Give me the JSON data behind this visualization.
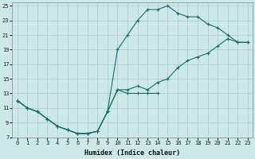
{
  "xlabel": "Humidex (Indice chaleur)",
  "bg_color": "#cce8e8",
  "grid_color": "#aacccc",
  "line_color": "#1a6b6b",
  "xlim": [
    -0.5,
    23.5
  ],
  "ylim": [
    7,
    25.5
  ],
  "xticks": [
    0,
    1,
    2,
    3,
    4,
    5,
    6,
    7,
    8,
    9,
    10,
    11,
    12,
    13,
    14,
    15,
    16,
    17,
    18,
    19,
    20,
    21,
    22,
    23
  ],
  "yticks": [
    7,
    9,
    11,
    13,
    15,
    17,
    19,
    21,
    23,
    25
  ],
  "curve1_x": [
    0,
    1,
    2,
    3,
    4,
    5,
    6,
    7,
    8,
    9,
    10,
    11,
    12,
    13,
    14,
    15,
    16,
    17,
    18,
    19,
    20,
    21,
    22,
    23
  ],
  "curve1_y": [
    12,
    11,
    10.5,
    9.5,
    8.5,
    8.0,
    7.5,
    7.5,
    7.8,
    10.5,
    19.0,
    21.0,
    23.0,
    24.5,
    24.5,
    25.0,
    24.0,
    23.5,
    23.5,
    22.5,
    22.0,
    21.0,
    20.0,
    20.0
  ],
  "curve2_x": [
    0,
    1,
    2,
    3,
    4,
    5,
    6,
    7,
    8,
    9,
    10,
    11,
    12,
    13,
    14,
    15,
    16,
    17,
    18,
    19,
    20,
    21,
    22,
    23
  ],
  "curve2_y": [
    12,
    11,
    10.5,
    9.5,
    8.5,
    8.0,
    7.5,
    7.5,
    7.8,
    10.5,
    13.5,
    13.5,
    14.0,
    13.5,
    14.5,
    15.0,
    16.5,
    17.5,
    18.0,
    18.5,
    19.5,
    20.5,
    20.0,
    20.0
  ],
  "curve3_x": [
    0,
    1,
    2,
    3,
    4,
    5,
    6,
    7,
    8,
    9,
    10,
    11,
    12,
    13,
    14
  ],
  "curve3_y": [
    12,
    11,
    10.5,
    9.5,
    8.5,
    8.0,
    7.5,
    7.5,
    7.8,
    10.5,
    13.5,
    13.0,
    13.0,
    13.0,
    13.0
  ],
  "marker": "+",
  "markersize": 3.0,
  "markeredgewidth": 0.8,
  "linewidth": 0.8,
  "xlabel_fontsize": 6.0,
  "tick_fontsize": 5.0
}
